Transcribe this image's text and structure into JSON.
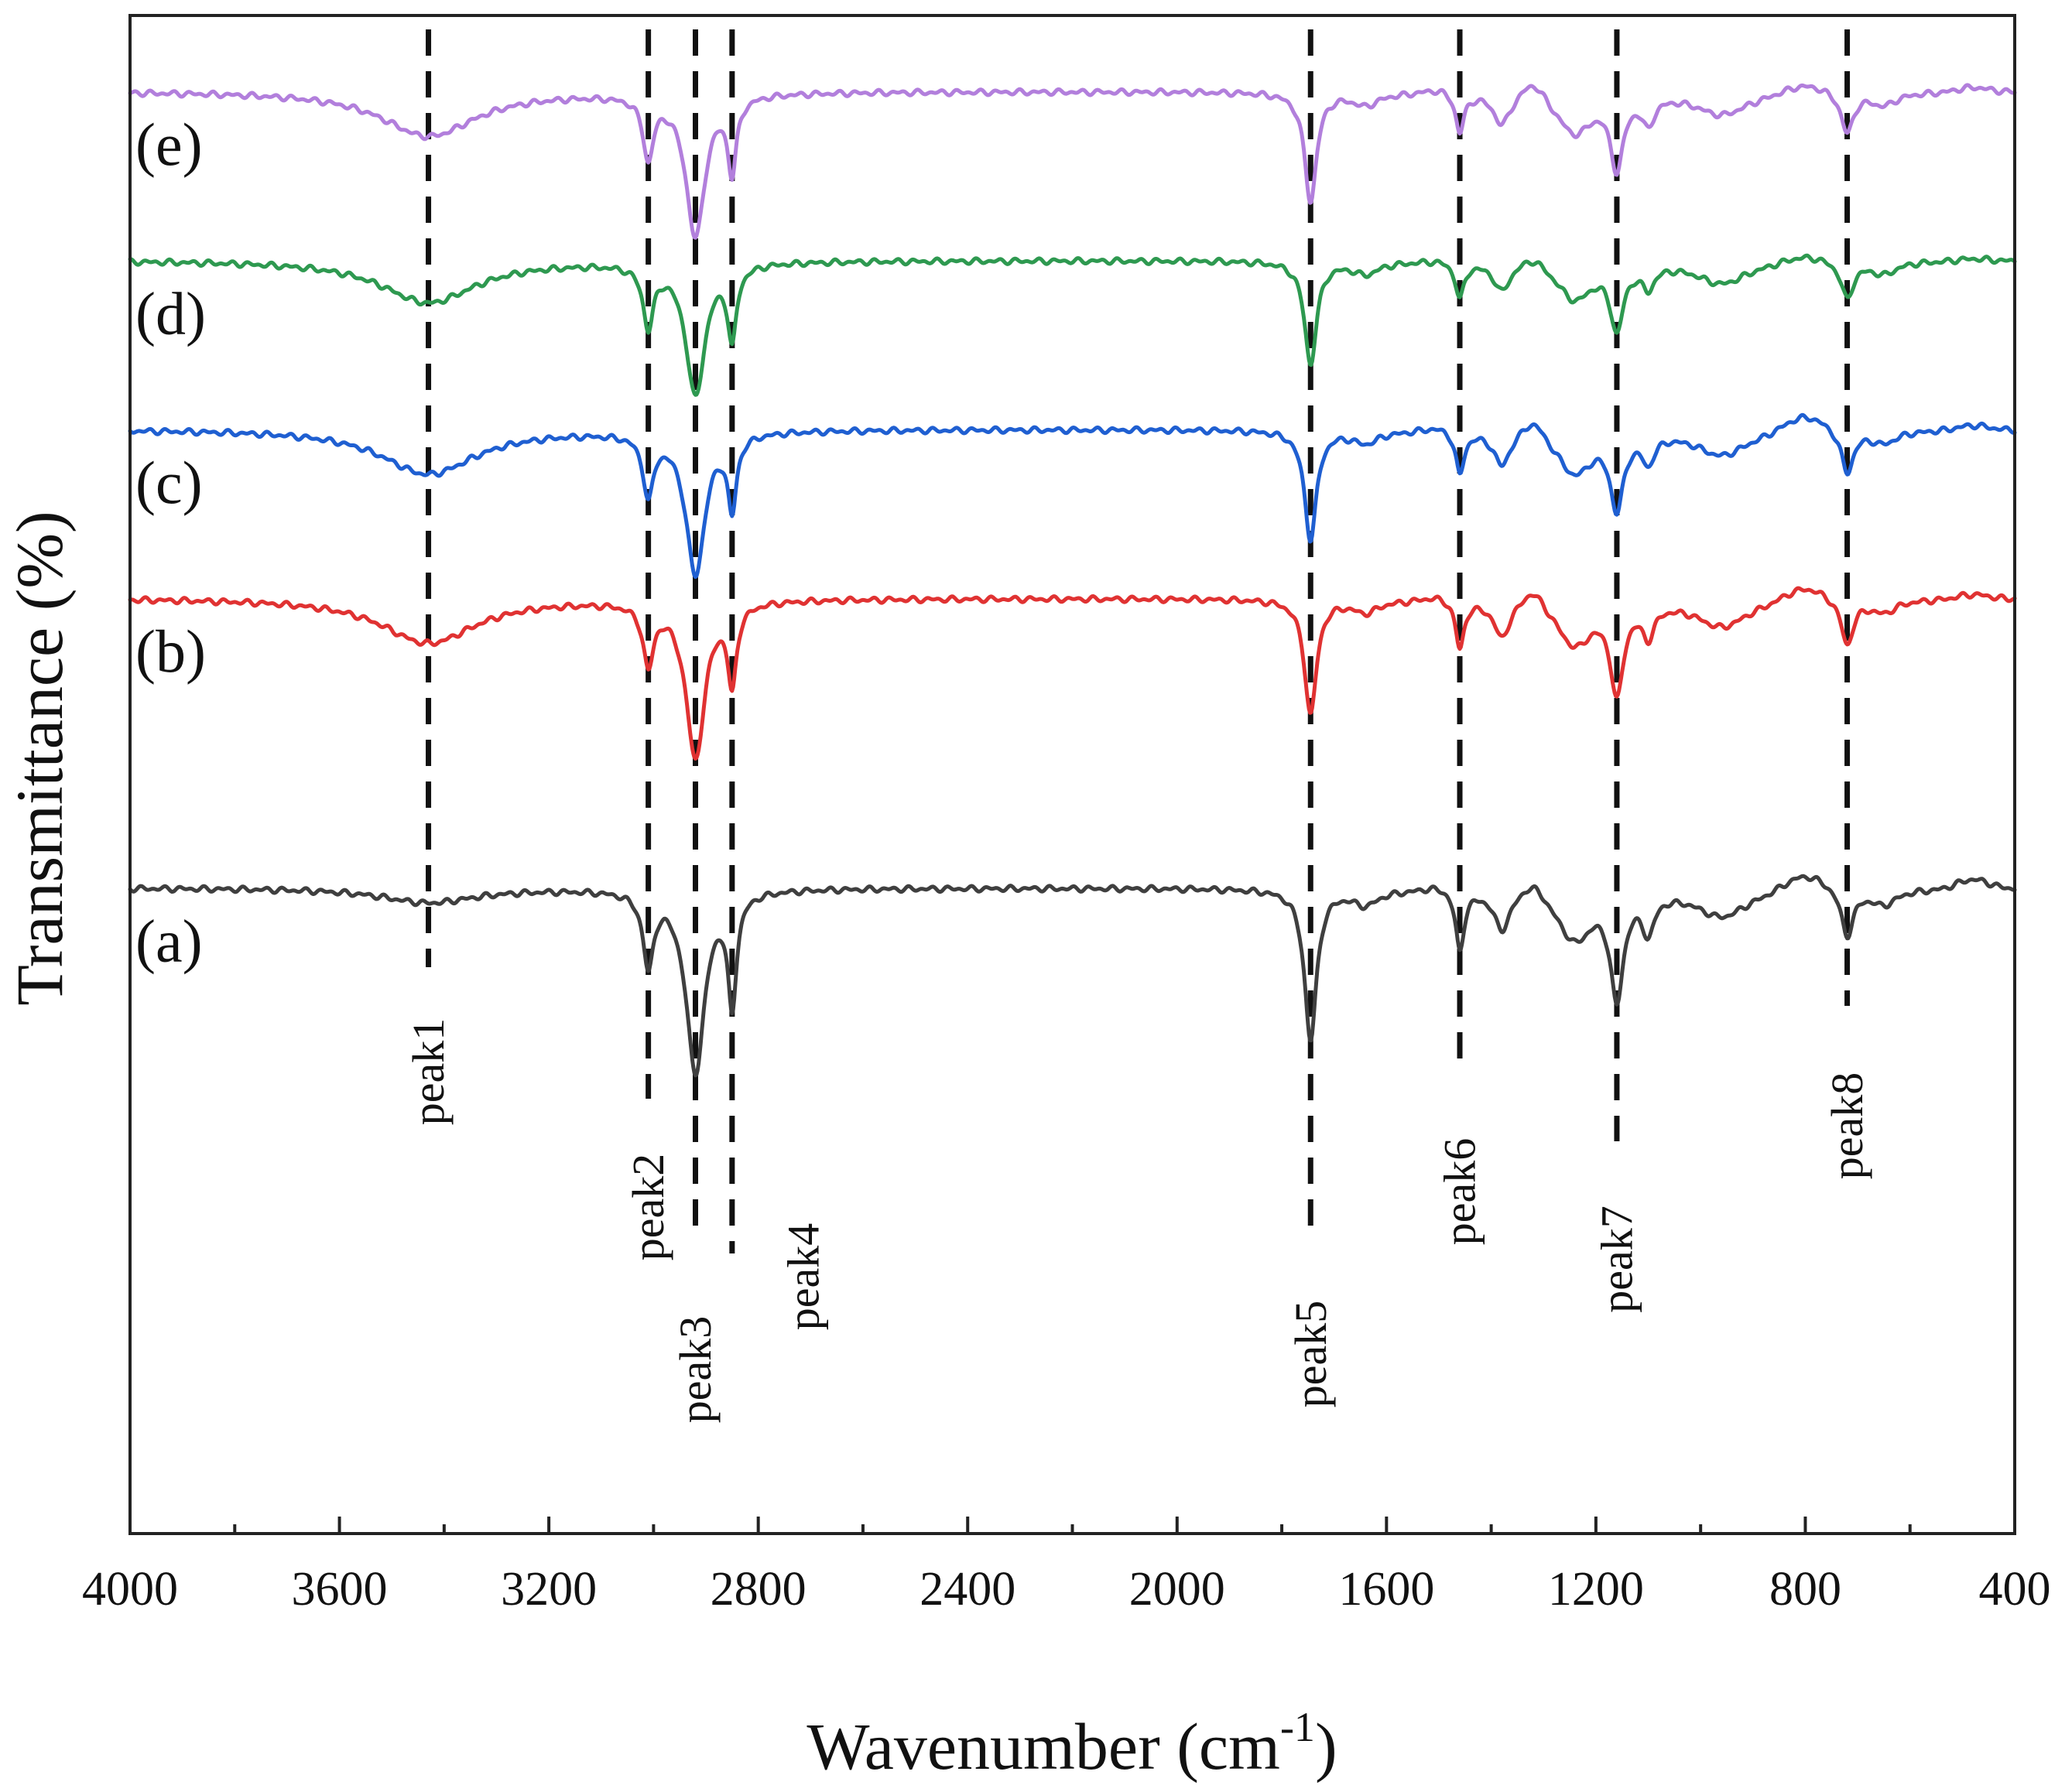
{
  "chart_data": {
    "type": "line",
    "title": "",
    "xlabel": "Wavenumber (cm",
    "xlabel_superscript": "-1",
    "xlabel_suffix": ")",
    "ylabel": "Transmittance (%)",
    "xlim": [
      4000,
      400
    ],
    "x_ticks": [
      4000,
      3600,
      3200,
      2800,
      2400,
      2000,
      1600,
      1200,
      800,
      400
    ],
    "x_tick_labels": [
      "4000",
      "3600",
      "3200",
      "2800",
      "2400",
      "2000",
      "1600",
      "1200",
      "800",
      "400"
    ],
    "y_ticks": [],
    "offset_stacked": true,
    "peak_markers": [
      {
        "name": "peak1",
        "x": 3430
      },
      {
        "name": "peak2",
        "x": 3010
      },
      {
        "name": "peak3",
        "x": 2920
      },
      {
        "name": "peak4",
        "x": 2850
      },
      {
        "name": "peak5",
        "x": 1745
      },
      {
        "name": "peak6",
        "x": 1460
      },
      {
        "name": "peak7",
        "x": 1160
      },
      {
        "name": "peak8",
        "x": 720
      }
    ],
    "series": [
      {
        "name": "(a)",
        "color": "#3f3f3f",
        "baseline": 0,
        "noise_seed": 1,
        "features": [
          [
            3430,
            0.012,
            110
          ],
          [
            3010,
            0.06,
            12
          ],
          [
            2920,
            0.15,
            22
          ],
          [
            2850,
            0.09,
            10
          ],
          [
            1745,
            0.125,
            14
          ],
          [
            1640,
            0.012,
            30
          ],
          [
            1460,
            0.05,
            10
          ],
          [
            1380,
            0.03,
            18
          ],
          [
            1240,
            0.04,
            40
          ],
          [
            1160,
            0.085,
            15
          ],
          [
            1100,
            0.03,
            14
          ],
          [
            960,
            0.022,
            60
          ],
          [
            720,
            0.038,
            14
          ],
          [
            650,
            0.012,
            30
          ]
        ],
        "bumps": [
          [
            1500,
            0.004,
            30
          ],
          [
            1320,
            0.012,
            20
          ],
          [
            800,
            0.014,
            40
          ],
          [
            480,
            0.008,
            30
          ]
        ]
      },
      {
        "name": "(b)",
        "color": "#e03232",
        "baseline": 0.24,
        "noise_seed": 2,
        "features": [
          [
            3430,
            0.037,
            110
          ],
          [
            3010,
            0.05,
            12
          ],
          [
            2920,
            0.13,
            22
          ],
          [
            2850,
            0.065,
            10
          ],
          [
            1745,
            0.095,
            14
          ],
          [
            1640,
            0.01,
            30
          ],
          [
            1460,
            0.04,
            10
          ],
          [
            1380,
            0.028,
            18
          ],
          [
            1240,
            0.036,
            40
          ],
          [
            1160,
            0.073,
            15
          ],
          [
            1100,
            0.025,
            14
          ],
          [
            960,
            0.022,
            60
          ],
          [
            720,
            0.037,
            14
          ],
          [
            650,
            0.01,
            30
          ]
        ],
        "bumps": [
          [
            1500,
            0.004,
            30
          ],
          [
            1320,
            0.014,
            20
          ],
          [
            800,
            0.012,
            40
          ],
          [
            480,
            0.004,
            30
          ]
        ]
      },
      {
        "name": "(c)",
        "color": "#1f5fd1",
        "baseline": 0.38,
        "noise_seed": 3,
        "features": [
          [
            3430,
            0.037,
            110
          ],
          [
            3010,
            0.05,
            12
          ],
          [
            2920,
            0.118,
            22
          ],
          [
            2850,
            0.06,
            10
          ],
          [
            1745,
            0.09,
            14
          ],
          [
            1640,
            0.01,
            30
          ],
          [
            1460,
            0.036,
            10
          ],
          [
            1380,
            0.026,
            18
          ],
          [
            1240,
            0.034,
            40
          ],
          [
            1160,
            0.06,
            15
          ],
          [
            1100,
            0.022,
            14
          ],
          [
            960,
            0.02,
            60
          ],
          [
            720,
            0.035,
            14
          ],
          [
            650,
            0.01,
            30
          ]
        ],
        "bumps": [
          [
            1500,
            0.004,
            30
          ],
          [
            1320,
            0.014,
            20
          ],
          [
            800,
            0.014,
            40
          ],
          [
            480,
            0.004,
            30
          ]
        ]
      },
      {
        "name": "(d)",
        "color": "#2e9950",
        "baseline": 0.52,
        "noise_seed": 4,
        "features": [
          [
            3430,
            0.035,
            110
          ],
          [
            3010,
            0.05,
            12
          ],
          [
            2920,
            0.11,
            22
          ],
          [
            2850,
            0.06,
            10
          ],
          [
            1745,
            0.085,
            14
          ],
          [
            1640,
            0.01,
            30
          ],
          [
            1460,
            0.03,
            10
          ],
          [
            1380,
            0.022,
            18
          ],
          [
            1240,
            0.03,
            40
          ],
          [
            1160,
            0.052,
            15
          ],
          [
            1100,
            0.018,
            14
          ],
          [
            960,
            0.018,
            60
          ],
          [
            720,
            0.03,
            14
          ],
          [
            650,
            0.01,
            30
          ]
        ],
        "bumps": [
          [
            1500,
            0.002,
            30
          ],
          [
            1320,
            0.008,
            20
          ],
          [
            800,
            0.006,
            40
          ],
          [
            480,
            0.002,
            30
          ]
        ]
      },
      {
        "name": "(e)",
        "color": "#b27fdc",
        "baseline": 0.66,
        "noise_seed": 5,
        "features": [
          [
            3430,
            0.037,
            110
          ],
          [
            3010,
            0.05,
            12
          ],
          [
            2920,
            0.118,
            22
          ],
          [
            2850,
            0.06,
            10
          ],
          [
            1745,
            0.09,
            14
          ],
          [
            1640,
            0.01,
            30
          ],
          [
            1460,
            0.033,
            10
          ],
          [
            1380,
            0.024,
            18
          ],
          [
            1240,
            0.032,
            40
          ],
          [
            1160,
            0.058,
            15
          ],
          [
            1100,
            0.022,
            14
          ],
          [
            960,
            0.018,
            60
          ],
          [
            720,
            0.033,
            14
          ],
          [
            650,
            0.01,
            30
          ]
        ],
        "bumps": [
          [
            1500,
            0.004,
            30
          ],
          [
            1320,
            0.014,
            20
          ],
          [
            800,
            0.008,
            40
          ],
          [
            480,
            0.004,
            30
          ]
        ]
      }
    ]
  }
}
